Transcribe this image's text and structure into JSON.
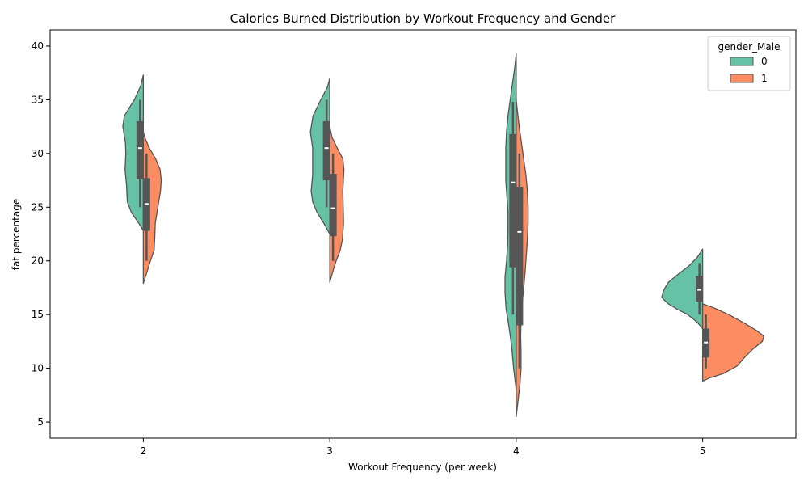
{
  "chart_data": {
    "type": "violin",
    "title": "Calories Burned Distribution by Workout Frequency and Gender",
    "xlabel": "Workout Frequency (per week)",
    "ylabel": "fat percentage",
    "categories": [
      "2",
      "3",
      "4",
      "5"
    ],
    "ylim": [
      3.5,
      41.5
    ],
    "yticks": [
      5,
      10,
      15,
      20,
      25,
      30,
      35,
      40
    ],
    "split": true,
    "grid": false,
    "legend": {
      "title": "gender_Male",
      "position": "top-right",
      "entries": [
        "0",
        "1"
      ]
    },
    "colors": {
      "0": "#66c2a5",
      "1": "#fc8d62",
      "edge": "#555555",
      "box": "#555555",
      "median": "#ffffff"
    },
    "series": [
      {
        "name": "0",
        "violins": [
          {
            "min": 22.8,
            "max": 37.3,
            "profile": [
              [
                22.8,
                0
              ],
              [
                23.5,
                0.12
              ],
              [
                24.5,
                0.32
              ],
              [
                25.5,
                0.43
              ],
              [
                27,
                0.45
              ],
              [
                28.5,
                0.49
              ],
              [
                30,
                0.47
              ],
              [
                31,
                0.48
              ],
              [
                32.5,
                0.55
              ],
              [
                33.5,
                0.51
              ],
              [
                35,
                0.24
              ],
              [
                36.3,
                0.07
              ],
              [
                37.3,
                0
              ]
            ],
            "box": {
              "q1": 27.6,
              "median": 30.5,
              "q3": 33.0,
              "wlow": 25.0,
              "whigh": 35.0
            }
          },
          {
            "min": 22.5,
            "max": 37.0,
            "profile": [
              [
                22.5,
                0
              ],
              [
                23.5,
                0.16
              ],
              [
                24.5,
                0.34
              ],
              [
                25.5,
                0.46
              ],
              [
                26.5,
                0.5
              ],
              [
                28,
                0.46
              ],
              [
                29,
                0.46
              ],
              [
                30.5,
                0.46
              ],
              [
                32,
                0.52
              ],
              [
                33.5,
                0.45
              ],
              [
                35,
                0.24
              ],
              [
                36.2,
                0.06
              ],
              [
                37.0,
                0
              ]
            ],
            "box": {
              "q1": 27.5,
              "median": 30.5,
              "q3": 33.0,
              "wlow": 25.0,
              "whigh": 35.0
            }
          },
          {
            "min": 8.0,
            "max": 39.3,
            "profile": [
              [
                8.0,
                0
              ],
              [
                10,
                0.07
              ],
              [
                12,
                0.12
              ],
              [
                14,
                0.2
              ],
              [
                15.5,
                0.27
              ],
              [
                17,
                0.3
              ],
              [
                18.5,
                0.3
              ],
              [
                20,
                0.26
              ],
              [
                21.5,
                0.23
              ],
              [
                23,
                0.22
              ],
              [
                24.5,
                0.22
              ],
              [
                26,
                0.25
              ],
              [
                27.5,
                0.28
              ],
              [
                29,
                0.28
              ],
              [
                30.5,
                0.28
              ],
              [
                32,
                0.26
              ],
              [
                33.5,
                0.22
              ],
              [
                35,
                0.16
              ],
              [
                36.5,
                0.1
              ],
              [
                38,
                0.04
              ],
              [
                39.3,
                0
              ]
            ],
            "box": {
              "q1": 19.4,
              "median": 27.3,
              "q3": 31.8,
              "wlow": 15.0,
              "whigh": 34.8
            }
          },
          {
            "min": 13.7,
            "max": 21.1,
            "profile": [
              [
                13.7,
                0
              ],
              [
                14.3,
                0.15
              ],
              [
                15,
                0.4
              ],
              [
                15.5,
                0.68
              ],
              [
                16,
                0.92
              ],
              [
                16.6,
                1.1
              ],
              [
                17.3,
                1.04
              ],
              [
                18,
                0.92
              ],
              [
                18.8,
                0.64
              ],
              [
                19.5,
                0.38
              ],
              [
                20.3,
                0.15
              ],
              [
                21.1,
                0
              ]
            ],
            "box": {
              "q1": 16.2,
              "median": 17.3,
              "q3": 18.6,
              "wlow": 15.0,
              "whigh": 19.8
            }
          }
        ]
      },
      {
        "name": "1",
        "violins": [
          {
            "min": 17.9,
            "max": 32.0,
            "profile": [
              [
                17.9,
                0
              ],
              [
                19,
                0.1
              ],
              [
                20,
                0.19
              ],
              [
                21,
                0.29
              ],
              [
                22.5,
                0.31
              ],
              [
                23.5,
                0.32
              ],
              [
                25,
                0.39
              ],
              [
                26.5,
                0.46
              ],
              [
                27.5,
                0.48
              ],
              [
                28.5,
                0.45
              ],
              [
                29.5,
                0.33
              ],
              [
                30.5,
                0.16
              ],
              [
                31.3,
                0.06
              ],
              [
                32.0,
                0
              ]
            ],
            "box": {
              "q1": 22.8,
              "median": 25.3,
              "q3": 27.7,
              "wlow": 20.0,
              "whigh": 30.0
            }
          },
          {
            "min": 18.0,
            "max": 32.5,
            "profile": [
              [
                18,
                0
              ],
              [
                19,
                0.08
              ],
              [
                20,
                0.17
              ],
              [
                21,
                0.28
              ],
              [
                22,
                0.34
              ],
              [
                23.5,
                0.37
              ],
              [
                25,
                0.36
              ],
              [
                26.5,
                0.35
              ],
              [
                28.5,
                0.38
              ],
              [
                29.5,
                0.35
              ],
              [
                30.5,
                0.2
              ],
              [
                31.5,
                0.06
              ],
              [
                32.5,
                0
              ]
            ],
            "box": {
              "q1": 22.3,
              "median": 24.9,
              "q3": 28.1,
              "wlow": 20.0,
              "whigh": 30.0
            }
          },
          {
            "min": 5.5,
            "max": 35.0,
            "profile": [
              [
                5.5,
                0
              ],
              [
                7,
                0.05
              ],
              [
                8.5,
                0.1
              ],
              [
                10,
                0.13
              ],
              [
                11.5,
                0.13
              ],
              [
                13,
                0.12
              ],
              [
                14.5,
                0.13
              ],
              [
                16,
                0.16
              ],
              [
                17.5,
                0.2
              ],
              [
                19,
                0.24
              ],
              [
                20.5,
                0.27
              ],
              [
                22,
                0.3
              ],
              [
                23.5,
                0.32
              ],
              [
                25,
                0.32
              ],
              [
                26.5,
                0.3
              ],
              [
                28,
                0.26
              ],
              [
                29.5,
                0.2
              ],
              [
                31,
                0.14
              ],
              [
                32.5,
                0.08
              ],
              [
                34,
                0.03
              ],
              [
                35.0,
                0
              ]
            ],
            "box": {
              "q1": 14.0,
              "median": 22.7,
              "q3": 26.9,
              "wlow": 10.0,
              "whigh": 30.0
            }
          },
          {
            "min": 8.8,
            "max": 16.0,
            "profile": [
              [
                8.8,
                0
              ],
              [
                9.1,
                0.18
              ],
              [
                9.5,
                0.55
              ],
              [
                10.2,
                0.92
              ],
              [
                11,
                1.12
              ],
              [
                11.8,
                1.35
              ],
              [
                12.5,
                1.6
              ],
              [
                13,
                1.64
              ],
              [
                13.5,
                1.45
              ],
              [
                14.2,
                1.12
              ],
              [
                15,
                0.7
              ],
              [
                15.6,
                0.32
              ],
              [
                16,
                0
              ]
            ],
            "box": {
              "q1": 11.0,
              "median": 12.4,
              "q3": 13.7,
              "wlow": 10.0,
              "whigh": 15.0
            }
          }
        ]
      }
    ]
  }
}
